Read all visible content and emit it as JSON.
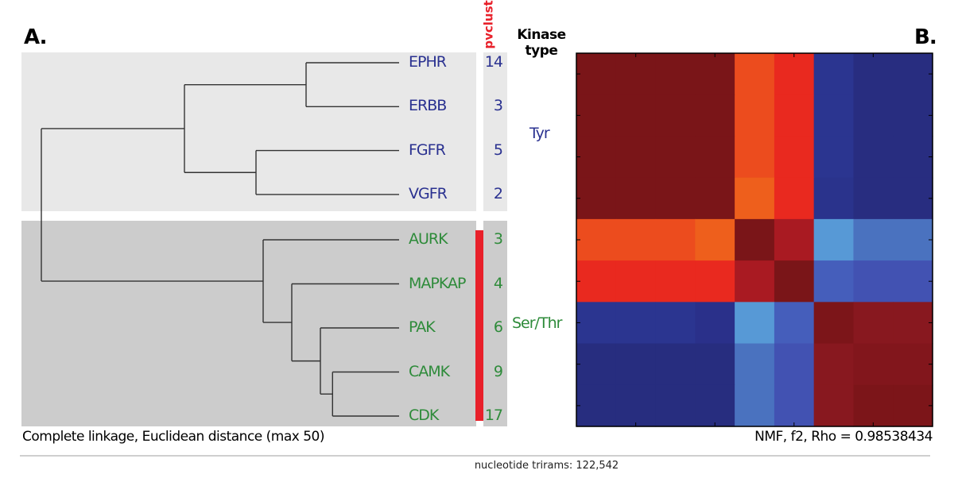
{
  "panel_a_label": "A.",
  "panel_b_label": "B.",
  "pvclust_label": "pvclust",
  "kinase_type_header": [
    "Kinase",
    "type"
  ],
  "colors": {
    "tyr": "#2a3190",
    "ser_thr": "#2e8b3a",
    "pvclust": "#e8202a",
    "top_bg": "#e8e8e8",
    "bottom_bg": "#cccccc"
  },
  "dendrogram": {
    "caption": "Complete linkage, Euclidean distance (max 50)",
    "max_distance": 50,
    "leaves": [
      {
        "label": "EPHR",
        "count": "14",
        "group": "tyr"
      },
      {
        "label": "ERBB",
        "count": "3",
        "group": "tyr"
      },
      {
        "label": "FGFR",
        "count": "5",
        "group": "tyr"
      },
      {
        "label": "VGFR",
        "count": "2",
        "group": "tyr"
      },
      {
        "label": "AURK",
        "count": "3",
        "group": "ser"
      },
      {
        "label": "MAPKAP",
        "count": "4",
        "group": "ser"
      },
      {
        "label": "PAK",
        "count": "6",
        "group": "ser"
      },
      {
        "label": "CAMK",
        "count": "9",
        "group": "ser"
      },
      {
        "label": "CDK",
        "count": "17",
        "group": "ser"
      }
    ],
    "tree": {
      "h": 50,
      "c": [
        {
          "h": 30,
          "c": [
            {
              "h": 13,
              "c": [
                0,
                1
              ]
            },
            {
              "h": 20,
              "c": [
                2,
                3
              ]
            }
          ]
        },
        {
          "h": 19,
          "c": [
            4,
            {
              "h": 15,
              "c": [
                5,
                {
                  "h": 11,
                  "c": [
                    6,
                    {
                      "h": 9.3,
                      "c": [
                        7,
                        8
                      ]
                    }
                  ]
                }
              ]
            }
          ]
        }
      ]
    },
    "kinase_types": [
      {
        "label": "Tyr",
        "group": "tyr"
      },
      {
        "label": "Ser/Thr",
        "group": "ser"
      }
    ],
    "pvclust_significant_leaves": [
      4,
      8
    ]
  },
  "chart_data": {
    "type": "heatmap",
    "title": "NMF, f2, Rho = 0.98538434",
    "rows": 9,
    "cols": 9,
    "cells": [
      [
        "#7a1518",
        "#7a1518",
        "#7a1518",
        "#7a1518",
        "#ec4c1e",
        "#e9291f",
        "#2b3590",
        "#282d80",
        "#282d80"
      ],
      [
        "#7a1518",
        "#7a1518",
        "#7a1518",
        "#7a1518",
        "#ec4c1e",
        "#e9291f",
        "#2b3590",
        "#282d80",
        "#282d80"
      ],
      [
        "#7a1518",
        "#7a1518",
        "#7a1518",
        "#7a1518",
        "#ec4c1e",
        "#e9291f",
        "#2b3590",
        "#282d80",
        "#282d80"
      ],
      [
        "#7a1518",
        "#7a1518",
        "#7a1518",
        "#7a1518",
        "#ee5f1c",
        "#e9291f",
        "#2a338c",
        "#282d80",
        "#282d80"
      ],
      [
        "#ec4c1e",
        "#ec4c1e",
        "#ec4c1e",
        "#ee5f1c",
        "#7a1518",
        "#a91a22",
        "#5799d6",
        "#4a72bf",
        "#4a72bf"
      ],
      [
        "#e9291f",
        "#e9291f",
        "#e9291f",
        "#e9291f",
        "#a91a22",
        "#7a1518",
        "#455ebb",
        "#4252b2",
        "#4252b2"
      ],
      [
        "#2b3590",
        "#2b3590",
        "#2b3590",
        "#2a308a",
        "#5799d6",
        "#455ebb",
        "#7c1519",
        "#88181f",
        "#88181f"
      ],
      [
        "#272d7f",
        "#272d7f",
        "#272d7f",
        "#272d7f",
        "#4a72bf",
        "#4252b2",
        "#88181f",
        "#82161c",
        "#82161c"
      ],
      [
        "#272d7f",
        "#272d7f",
        "#272d7f",
        "#272d7f",
        "#4a72bf",
        "#4252b2",
        "#88181f",
        "#7c1519",
        "#7c1519"
      ]
    ]
  },
  "footer": "nucleotide trirams: 122,542"
}
